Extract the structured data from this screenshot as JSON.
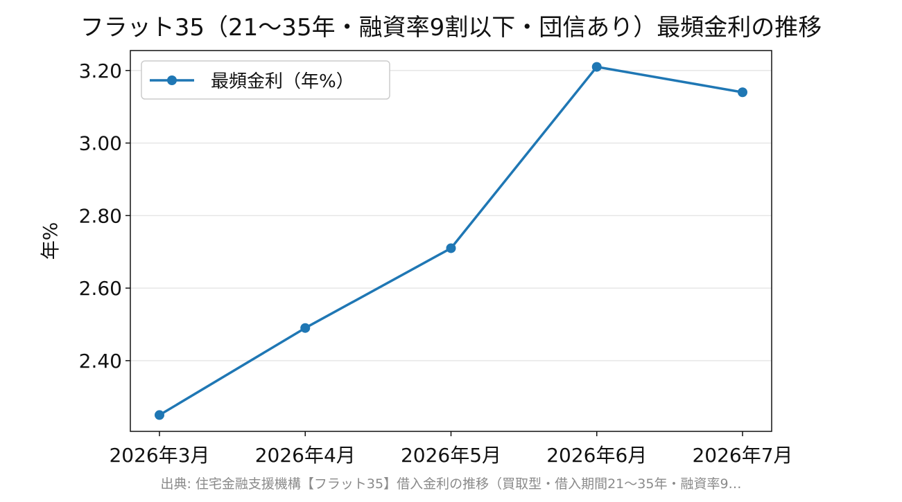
{
  "chart_data": {
    "type": "line",
    "title": "フラット35（21〜35年・融資率9割以下・団信あり）最頻金利の推移",
    "xlabel": "",
    "ylabel": "年%",
    "categories": [
      "2026年3月",
      "2026年4月",
      "2026年5月",
      "2026年6月",
      "2026年7月"
    ],
    "series": [
      {
        "name": "最頻金利（年%）",
        "values": [
          2.25,
          2.49,
          2.71,
          3.21,
          3.14
        ],
        "color": "#1f77b4"
      }
    ],
    "ylim": [
      2.205,
      3.255
    ],
    "yticks": [
      2.4,
      2.6,
      2.8,
      3.0,
      3.2
    ],
    "ytick_labels": [
      "2.40",
      "2.60",
      "2.80",
      "3.00",
      "3.20"
    ],
    "grid": "horizontal",
    "legend_position": "upper-left"
  },
  "source_note": "出典: 住宅金融支援機構【フラット35】借入金利の推移（買取型・借入期間21〜35年・融資率9…"
}
